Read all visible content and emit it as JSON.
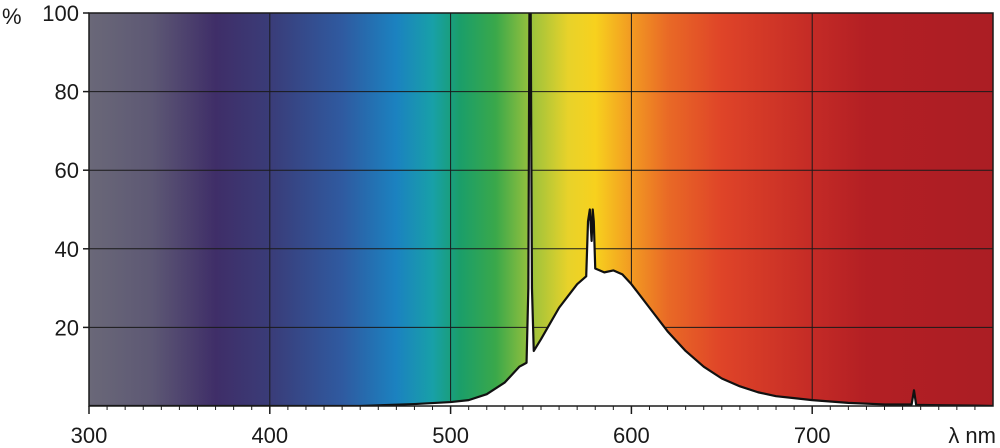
{
  "chart_data": {
    "type": "area",
    "xlabel": "λ nm",
    "ylabel": "%",
    "xlim": [
      300,
      800
    ],
    "ylim": [
      0,
      100
    ],
    "x_ticks": [
      300,
      400,
      500,
      600,
      700
    ],
    "y_ticks": [
      20,
      40,
      60,
      80,
      100
    ],
    "x_tick_labels": [
      "300",
      "400",
      "500",
      "600",
      "700"
    ],
    "y_tick_labels": [
      "20",
      "40",
      "60",
      "80",
      "100"
    ],
    "grid": true,
    "background": "visible spectrum color gradient",
    "series": [
      {
        "points": [
          [
            300,
            0
          ],
          [
            400,
            0
          ],
          [
            450,
            0
          ],
          [
            480,
            0.5
          ],
          [
            500,
            1
          ],
          [
            510,
            1.5
          ],
          [
            520,
            3
          ],
          [
            530,
            6
          ],
          [
            538,
            10
          ],
          [
            540,
            10.5
          ],
          [
            542,
            11
          ],
          [
            543,
            30
          ],
          [
            543.6,
            100
          ],
          [
            544.3,
            100
          ],
          [
            545,
            30
          ],
          [
            546,
            14
          ],
          [
            550,
            17
          ],
          [
            555,
            21
          ],
          [
            560,
            25
          ],
          [
            565,
            28
          ],
          [
            570,
            31
          ],
          [
            575,
            33
          ],
          [
            576,
            47
          ],
          [
            577,
            50
          ],
          [
            578,
            42
          ],
          [
            578.6,
            50
          ],
          [
            579.2,
            47
          ],
          [
            580,
            35
          ],
          [
            585,
            34
          ],
          [
            590,
            34.5
          ],
          [
            595,
            33.5
          ],
          [
            600,
            31
          ],
          [
            610,
            25
          ],
          [
            620,
            19
          ],
          [
            630,
            14
          ],
          [
            640,
            10
          ],
          [
            650,
            7
          ],
          [
            660,
            5
          ],
          [
            670,
            3.5
          ],
          [
            680,
            2.5
          ],
          [
            690,
            2
          ],
          [
            700,
            1.5
          ],
          [
            720,
            0.8
          ],
          [
            740,
            0.4
          ],
          [
            755,
            0.4
          ],
          [
            756.3,
            4
          ],
          [
            757.5,
            0.3
          ],
          [
            770,
            0.2
          ],
          [
            790,
            0.1
          ],
          [
            800,
            0
          ]
        ]
      }
    ]
  },
  "colors": {
    "curve_stroke": "#111111",
    "curve_fill": "#ffffff",
    "grid": "#1a1a1a",
    "axis": "#1a1a1a",
    "spectrum_stops": [
      {
        "nm": 300,
        "color": "#6a6878"
      },
      {
        "nm": 335,
        "color": "#5d5874"
      },
      {
        "nm": 370,
        "color": "#3f2e68"
      },
      {
        "nm": 400,
        "color": "#3a3c78"
      },
      {
        "nm": 440,
        "color": "#2f5aa0"
      },
      {
        "nm": 470,
        "color": "#1b82c0"
      },
      {
        "nm": 490,
        "color": "#18a0a8"
      },
      {
        "nm": 505,
        "color": "#1a9e6a"
      },
      {
        "nm": 525,
        "color": "#3aa84a"
      },
      {
        "nm": 545,
        "color": "#9cc23c"
      },
      {
        "nm": 565,
        "color": "#e8d22a"
      },
      {
        "nm": 580,
        "color": "#f7d11e"
      },
      {
        "nm": 600,
        "color": "#f29a22"
      },
      {
        "nm": 620,
        "color": "#e96a26"
      },
      {
        "nm": 650,
        "color": "#df4428"
      },
      {
        "nm": 700,
        "color": "#c42b26"
      },
      {
        "nm": 730,
        "color": "#b31f24"
      },
      {
        "nm": 800,
        "color": "#ab1e24"
      }
    ]
  }
}
